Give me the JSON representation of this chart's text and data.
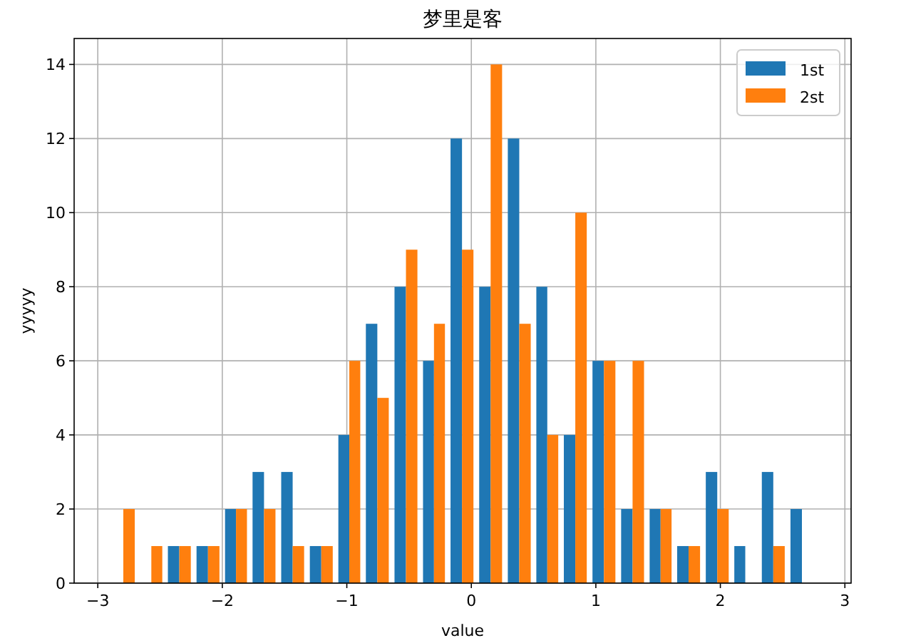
{
  "chart_data": {
    "type": "histogram",
    "title": "梦里是客",
    "xlabel": "value",
    "ylabel": "yyyyy",
    "bins": [
      -2.91,
      -2.68,
      -2.46,
      -2.23,
      -2.0,
      -1.78,
      -1.55,
      -1.32,
      -1.09,
      -0.87,
      -0.64,
      -0.41,
      -0.19,
      0.04,
      0.27,
      0.5,
      0.72,
      0.95,
      1.18,
      1.41,
      1.63,
      1.86,
      2.09,
      2.31,
      2.54,
      2.77
    ],
    "series": [
      {
        "name": "1st",
        "color": "#1f77b4",
        "values": [
          0,
          0,
          1,
          1,
          2,
          3,
          3,
          1,
          4,
          7,
          8,
          6,
          12,
          8,
          12,
          8,
          4,
          6,
          2,
          2,
          1,
          3,
          1,
          3,
          2
        ]
      },
      {
        "name": "2st",
        "color": "#ff7f0e",
        "values": [
          2,
          1,
          1,
          1,
          2,
          2,
          1,
          1,
          6,
          5,
          9,
          7,
          9,
          14,
          7,
          4,
          10,
          6,
          6,
          2,
          1,
          2,
          0,
          1,
          0
        ]
      }
    ],
    "xlim": [
      -3.19,
      3.05
    ],
    "xticks": [
      {
        "value": -3,
        "label": "−3"
      },
      {
        "value": -2,
        "label": "−2"
      },
      {
        "value": -1,
        "label": "−1"
      },
      0,
      1,
      2,
      3
    ],
    "ylim": [
      0,
      14.7
    ],
    "yticks": [
      0,
      2,
      4,
      6,
      8,
      10,
      12,
      14
    ],
    "grid": true,
    "legend": "top right"
  }
}
